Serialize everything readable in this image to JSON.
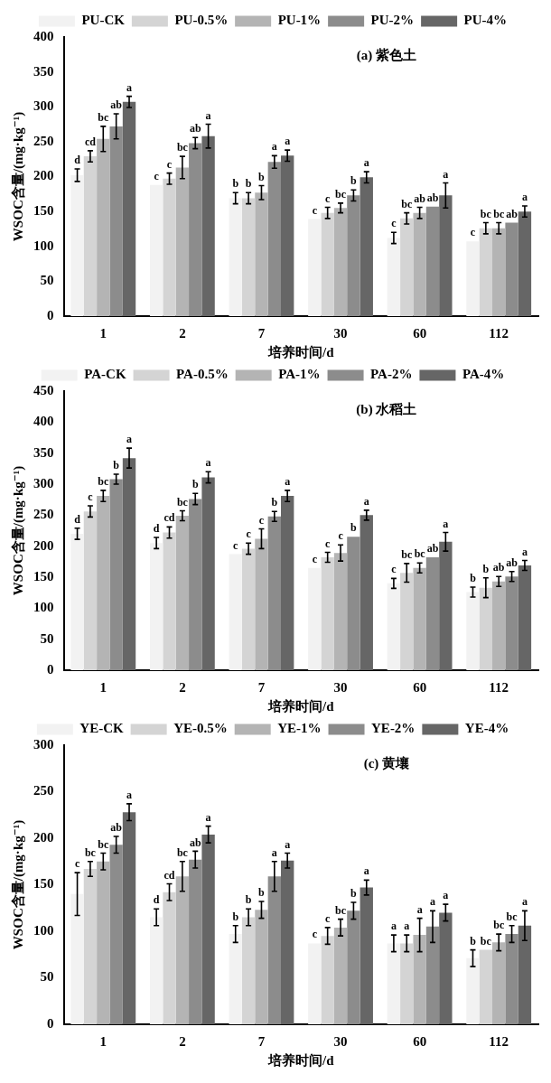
{
  "chart_data": [
    {
      "type": "bar",
      "title": "(a) 紫色土",
      "xlabel": "培养时间/d",
      "ylabel": "WSOC含量/(mg·kg⁻¹)",
      "categories": [
        "1",
        "2",
        "7",
        "30",
        "60",
        "112"
      ],
      "ylim": [
        0,
        400
      ],
      "yticks": [
        0,
        50,
        100,
        150,
        200,
        250,
        300,
        350,
        400
      ],
      "grid": false,
      "legend": "top",
      "series": [
        {
          "name": "PU-CK",
          "color": "#f2f2f2",
          "values": [
            202,
            188,
            169,
            139,
            112,
            107
          ],
          "errors": [
            9,
            null,
            8,
            null,
            8,
            null
          ],
          "value_labels": [
            "d",
            "c",
            "b",
            "c",
            "c",
            "c"
          ]
        },
        {
          "name": "PU-0.5%",
          "color": "#d4d4d4",
          "values": [
            229,
            197,
            169,
            148,
            140,
            126
          ],
          "errors": [
            8,
            8,
            8,
            8,
            8,
            8
          ],
          "value_labels": [
            "cd",
            "c",
            "b",
            "c",
            "bc",
            "bc"
          ]
        },
        {
          "name": "PU-1%",
          "color": "#b4b4b4",
          "values": [
            254,
            213,
            177,
            155,
            148,
            126
          ],
          "errors": [
            18,
            16,
            10,
            7,
            8,
            8
          ],
          "value_labels": [
            "bc",
            "bc",
            "b",
            "bc",
            "ab",
            "bc"
          ]
        },
        {
          "name": "PU-2%",
          "color": "#8c8c8c",
          "values": [
            272,
            248,
            221,
            173,
            157,
            134
          ],
          "errors": [
            18,
            8,
            9,
            8,
            null,
            null
          ],
          "value_labels": [
            "ab",
            "ab",
            "a",
            "b",
            "ab",
            "ab"
          ]
        },
        {
          "name": "PU-4%",
          "color": "#666666",
          "values": [
            307,
            258,
            230,
            199,
            173,
            150
          ],
          "errors": [
            8,
            17,
            8,
            8,
            18,
            8
          ],
          "value_labels": [
            "a",
            "a",
            "a",
            "a",
            "a",
            "a"
          ]
        }
      ]
    },
    {
      "type": "bar",
      "title": "(b) 水稻土",
      "xlabel": "培养时间/d",
      "ylabel": "WSOC含量/(mg·kg⁻¹)",
      "categories": [
        "1",
        "2",
        "7",
        "30",
        "60",
        "112"
      ],
      "ylim": [
        0,
        450
      ],
      "yticks": [
        0,
        50,
        100,
        150,
        200,
        250,
        300,
        350,
        400,
        450
      ],
      "grid": false,
      "legend": "top",
      "series": [
        {
          "name": "PA-CK",
          "color": "#f2f2f2",
          "values": [
            220,
            205,
            187,
            165,
            140,
            126
          ],
          "errors": [
            9,
            9,
            null,
            null,
            8,
            8
          ],
          "value_labels": [
            "d",
            "d",
            "c",
            "c",
            "c",
            "b"
          ]
        },
        {
          "name": "PA-0.5%",
          "color": "#d4d4d4",
          "values": [
            256,
            222,
            196,
            182,
            157,
            133
          ],
          "errors": [
            9,
            9,
            9,
            8,
            15,
            16
          ],
          "value_labels": [
            "c",
            "cd",
            "c",
            "c",
            "bc",
            "b"
          ]
        },
        {
          "name": "PA-1%",
          "color": "#b4b4b4",
          "values": [
            281,
            249,
            212,
            189,
            165,
            143
          ],
          "errors": [
            9,
            8,
            16,
            13,
            8,
            8
          ],
          "value_labels": [
            "bc",
            "bc",
            "c",
            "c",
            "bc",
            "ab"
          ]
        },
        {
          "name": "PA-2%",
          "color": "#8c8c8c",
          "values": [
            308,
            276,
            248,
            215,
            182,
            151
          ],
          "errors": [
            8,
            9,
            8,
            null,
            null,
            8
          ],
          "value_labels": [
            "b",
            "b",
            "b",
            "b",
            "ab",
            "ab"
          ]
        },
        {
          "name": "PA-4%",
          "color": "#666666",
          "values": [
            342,
            311,
            281,
            250,
            207,
            169
          ],
          "errors": [
            16,
            9,
            9,
            8,
            15,
            8
          ],
          "value_labels": [
            "a",
            "a",
            "a",
            "a",
            "a",
            "a"
          ]
        }
      ]
    },
    {
      "type": "bar",
      "title": "(c) 黄壤",
      "xlabel": "培养时间/d",
      "ylabel": "WSOC含量/(mg·kg⁻¹)",
      "categories": [
        "1",
        "2",
        "7",
        "30",
        "60",
        "112"
      ],
      "ylim": [
        0,
        300
      ],
      "yticks": [
        0,
        50,
        100,
        150,
        200,
        250,
        300
      ],
      "grid": false,
      "legend": "top",
      "series": [
        {
          "name": "YE-CK",
          "color": "#f2f2f2",
          "values": [
            140,
            115,
            97,
            87,
            87,
            71
          ],
          "errors": [
            23,
            9,
            9,
            null,
            9,
            9
          ],
          "value_labels": [
            "c",
            "d",
            "b",
            "c",
            "a",
            "b"
          ]
        },
        {
          "name": "YE-0.5%",
          "color": "#d4d4d4",
          "values": [
            167,
            142,
            115,
            95,
            87,
            80
          ],
          "errors": [
            8,
            9,
            9,
            9,
            9,
            null
          ],
          "value_labels": [
            "bc",
            "cd",
            "b",
            "c",
            "a",
            "bc"
          ]
        },
        {
          "name": "YE-1%",
          "color": "#b4b4b4",
          "values": [
            175,
            159,
            123,
            104,
            96,
            88
          ],
          "errors": [
            9,
            16,
            9,
            9,
            18,
            9
          ],
          "value_labels": [
            "bc",
            "bc",
            "b",
            "bc",
            "a",
            "bc"
          ]
        },
        {
          "name": "YE-2%",
          "color": "#8c8c8c",
          "values": [
            193,
            177,
            159,
            122,
            105,
            97
          ],
          "errors": [
            9,
            9,
            16,
            9,
            17,
            9
          ],
          "value_labels": [
            "ab",
            "ab",
            "a",
            "b",
            "a",
            "bc"
          ]
        },
        {
          "name": "YE-4%",
          "color": "#666666",
          "values": [
            228,
            204,
            176,
            147,
            120,
            106
          ],
          "errors": [
            9,
            9,
            8,
            8,
            9,
            16
          ],
          "value_labels": [
            "a",
            "a",
            "a",
            "a",
            "a",
            "a"
          ]
        }
      ]
    }
  ]
}
